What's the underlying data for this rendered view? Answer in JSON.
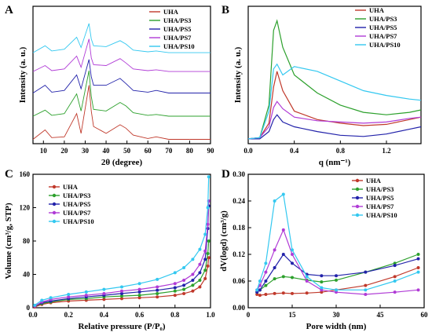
{
  "colors": {
    "UHA": "#c0392b",
    "UHA/PS3": "#2ca02c",
    "UHA/PS5": "#2222aa",
    "UHA/PS7": "#b03bd6",
    "UHA/PS10": "#33c8f0"
  },
  "chart_data": [
    {
      "panel": "A",
      "type": "line",
      "title": "",
      "xlabel": "2θ (degree)",
      "ylabel": "Intensity (a. u.)",
      "xlim": [
        5,
        90
      ],
      "xticks": [
        "10",
        "20",
        "30",
        "40",
        "50",
        "60",
        "70",
        "80",
        "90"
      ],
      "legend_position": "top-right",
      "series": [
        {
          "name": "UHA",
          "x": [
            5,
            10.8,
            14,
            20,
            25.9,
            28,
            31.8,
            32.9,
            34,
            40,
            46.7,
            49.5,
            53,
            60,
            64,
            70,
            80,
            90
          ],
          "y": [
            0.5,
            1.6,
            0.7,
            0.8,
            3.5,
            1.2,
            6.8,
            3.8,
            2.0,
            1.2,
            2.2,
            1.8,
            1.0,
            0.6,
            0.8,
            0.5,
            0.5,
            0.5
          ]
        },
        {
          "name": "UHA/PS3",
          "x": [
            5,
            10.8,
            14,
            20,
            25.9,
            28,
            31.8,
            32.9,
            34,
            40,
            46.7,
            49.5,
            53,
            60,
            64,
            70,
            80,
            90
          ],
          "y": [
            3.2,
            3.9,
            3.3,
            3.5,
            5.8,
            3.8,
            8.5,
            5.5,
            4.0,
            3.8,
            4.8,
            4.4,
            3.6,
            3.3,
            3.4,
            3.2,
            3.2,
            3.2
          ]
        },
        {
          "name": "UHA/PS5",
          "x": [
            5,
            10.8,
            14,
            20,
            25.9,
            28,
            31.8,
            32.9,
            34,
            40,
            46.7,
            49.5,
            53,
            60,
            64,
            70,
            80,
            90
          ],
          "y": [
            5.9,
            6.8,
            6.0,
            6.2,
            8.0,
            6.4,
            9.8,
            7.8,
            6.8,
            6.8,
            7.6,
            7.0,
            6.2,
            6.0,
            6.2,
            5.9,
            5.9,
            5.9
          ]
        },
        {
          "name": "UHA/PS7",
          "x": [
            5,
            10.8,
            14,
            20,
            25.9,
            28,
            31.8,
            32.9,
            34,
            40,
            46.7,
            49.5,
            53,
            60,
            64,
            70,
            80,
            90
          ],
          "y": [
            8.4,
            9.1,
            8.5,
            8.7,
            10.2,
            8.9,
            12.2,
            10.0,
            9.2,
            9.1,
            9.9,
            9.4,
            8.7,
            8.5,
            8.6,
            8.4,
            8.4,
            8.4
          ]
        },
        {
          "name": "UHA/PS10",
          "x": [
            5,
            10.8,
            14,
            20,
            25.9,
            28,
            31.8,
            32.9,
            34,
            40,
            46.7,
            49.5,
            53,
            60,
            64,
            70,
            80,
            90
          ],
          "y": [
            10.6,
            11.4,
            10.8,
            11.0,
            12.4,
            11.2,
            14.0,
            12.2,
            11.4,
            11.3,
            12.0,
            11.6,
            10.9,
            10.7,
            10.8,
            10.6,
            10.6,
            10.6
          ]
        }
      ]
    },
    {
      "panel": "B",
      "type": "line",
      "title": "",
      "xlabel": "q (nm⁻¹)",
      "ylabel": "Intensity (a. u.)",
      "xlim": [
        0,
        1.5
      ],
      "xticks": [
        "0.0",
        "0.4",
        "0.8",
        "1.2"
      ],
      "legend_position": "top-right",
      "series": [
        {
          "name": "UHA",
          "x": [
            0.0,
            0.1,
            0.18,
            0.22,
            0.25,
            0.3,
            0.4,
            0.6,
            0.8,
            1.0,
            1.2,
            1.4,
            1.5
          ],
          "y": [
            0.02,
            0.03,
            0.15,
            0.45,
            0.58,
            0.42,
            0.25,
            0.18,
            0.15,
            0.13,
            0.14,
            0.18,
            0.2
          ]
        },
        {
          "name": "UHA/PS3",
          "x": [
            0.0,
            0.1,
            0.18,
            0.22,
            0.25,
            0.3,
            0.4,
            0.6,
            0.8,
            1.0,
            1.2,
            1.4,
            1.5
          ],
          "y": [
            0.02,
            0.03,
            0.3,
            0.92,
            1.0,
            0.78,
            0.55,
            0.4,
            0.3,
            0.24,
            0.22,
            0.24,
            0.26
          ]
        },
        {
          "name": "UHA/PS5",
          "x": [
            0.0,
            0.1,
            0.18,
            0.22,
            0.25,
            0.3,
            0.4,
            0.6,
            0.8,
            1.0,
            1.2,
            1.4,
            1.5
          ],
          "y": [
            0.02,
            0.02,
            0.08,
            0.18,
            0.22,
            0.16,
            0.12,
            0.08,
            0.05,
            0.04,
            0.06,
            0.1,
            0.12
          ]
        },
        {
          "name": "UHA/PS7",
          "x": [
            0.0,
            0.1,
            0.18,
            0.22,
            0.25,
            0.3,
            0.4,
            0.6,
            0.8,
            1.0,
            1.2,
            1.4,
            1.5
          ],
          "y": [
            0.02,
            0.03,
            0.12,
            0.28,
            0.33,
            0.27,
            0.2,
            0.17,
            0.16,
            0.15,
            0.16,
            0.19,
            0.2
          ]
        },
        {
          "name": "UHA/PS10",
          "x": [
            0.0,
            0.1,
            0.18,
            0.22,
            0.25,
            0.3,
            0.4,
            0.6,
            0.8,
            1.0,
            1.2,
            1.4,
            1.5
          ],
          "y": [
            0.02,
            0.03,
            0.25,
            0.6,
            0.64,
            0.55,
            0.62,
            0.58,
            0.5,
            0.42,
            0.38,
            0.35,
            0.34
          ]
        }
      ]
    },
    {
      "panel": "C",
      "type": "line",
      "title": "",
      "xlabel": "Relative pressure (P/P₀)",
      "ylabel": "Volume (cm³/g, STP)",
      "xlim": [
        0,
        1.0
      ],
      "ylim": [
        0,
        160
      ],
      "xticks": [
        "0.0",
        "0.2",
        "0.4",
        "0.6",
        "0.8",
        "1.0"
      ],
      "yticks": [
        "0",
        "40",
        "80",
        "120",
        "160"
      ],
      "legend_position": "top-left",
      "series": [
        {
          "name": "UHA",
          "x": [
            0.01,
            0.05,
            0.1,
            0.2,
            0.3,
            0.4,
            0.5,
            0.6,
            0.7,
            0.8,
            0.85,
            0.9,
            0.94,
            0.97,
            0.985,
            0.99
          ],
          "y": [
            1,
            4,
            6,
            8,
            9,
            10,
            11,
            12,
            13,
            15,
            17,
            20,
            25,
            35,
            50,
            60
          ]
        },
        {
          "name": "UHA/PS3",
          "x": [
            0.01,
            0.05,
            0.1,
            0.2,
            0.3,
            0.4,
            0.5,
            0.6,
            0.7,
            0.8,
            0.85,
            0.9,
            0.94,
            0.97,
            0.985,
            0.99
          ],
          "y": [
            2,
            5,
            7,
            10,
            11,
            13,
            14,
            15,
            17,
            20,
            22,
            27,
            33,
            45,
            65,
            80
          ]
        },
        {
          "name": "UHA/PS5",
          "x": [
            0.01,
            0.05,
            0.1,
            0.2,
            0.3,
            0.4,
            0.5,
            0.6,
            0.7,
            0.8,
            0.85,
            0.9,
            0.94,
            0.97,
            0.985,
            0.99
          ],
          "y": [
            2,
            6,
            8,
            11,
            13,
            15,
            17,
            19,
            21,
            24,
            27,
            33,
            42,
            58,
            95,
            122
          ]
        },
        {
          "name": "UHA/PS7",
          "x": [
            0.01,
            0.05,
            0.1,
            0.2,
            0.3,
            0.4,
            0.5,
            0.6,
            0.7,
            0.8,
            0.85,
            0.9,
            0.94,
            0.97,
            0.985,
            0.99
          ],
          "y": [
            2,
            7,
            10,
            13,
            15,
            17,
            20,
            22,
            25,
            29,
            33,
            40,
            52,
            68,
            100,
            128
          ]
        },
        {
          "name": "UHA/PS10",
          "x": [
            0.01,
            0.05,
            0.1,
            0.2,
            0.3,
            0.4,
            0.5,
            0.6,
            0.7,
            0.8,
            0.85,
            0.9,
            0.94,
            0.97,
            0.985,
            0.99
          ],
          "y": [
            3,
            9,
            12,
            16,
            19,
            22,
            25,
            29,
            34,
            42,
            48,
            58,
            70,
            88,
            120,
            157
          ]
        }
      ]
    },
    {
      "panel": "D",
      "type": "line",
      "title": "",
      "xlabel": "Pore width (nm)",
      "ylabel": "dV(logd) (cm³/g)",
      "xlim": [
        0,
        60
      ],
      "ylim": [
        0,
        0.3
      ],
      "xticks": [
        "0",
        "15",
        "30",
        "45",
        "60"
      ],
      "yticks": [
        "0.00",
        "0.06",
        "0.12",
        "0.18",
        "0.24",
        "0.30"
      ],
      "legend_position": "top-right",
      "series": [
        {
          "name": "UHA",
          "x": [
            3,
            4,
            6,
            9,
            12,
            15,
            20,
            25,
            30,
            40,
            50,
            58
          ],
          "y": [
            0.03,
            0.028,
            0.03,
            0.032,
            0.033,
            0.032,
            0.033,
            0.035,
            0.04,
            0.05,
            0.07,
            0.09
          ]
        },
        {
          "name": "UHA/PS3",
          "x": [
            3,
            4,
            6,
            9,
            12,
            15,
            20,
            25,
            30,
            40,
            50,
            58
          ],
          "y": [
            0.035,
            0.04,
            0.05,
            0.065,
            0.07,
            0.068,
            0.062,
            0.058,
            0.062,
            0.08,
            0.1,
            0.12
          ]
        },
        {
          "name": "UHA/PS5",
          "x": [
            3,
            4,
            6,
            9,
            12,
            15,
            20,
            25,
            30,
            40,
            50,
            58
          ],
          "y": [
            0.035,
            0.04,
            0.06,
            0.09,
            0.12,
            0.1,
            0.075,
            0.072,
            0.072,
            0.08,
            0.095,
            0.11
          ]
        },
        {
          "name": "UHA/PS7",
          "x": [
            3,
            4,
            6,
            9,
            12,
            15,
            20,
            25,
            30,
            40,
            50,
            58
          ],
          "y": [
            0.04,
            0.05,
            0.08,
            0.13,
            0.175,
            0.12,
            0.06,
            0.04,
            0.035,
            0.03,
            0.035,
            0.04
          ]
        },
        {
          "name": "UHA/PS10",
          "x": [
            3,
            4,
            6,
            9,
            12,
            15,
            20,
            25,
            30,
            40,
            50,
            58
          ],
          "y": [
            0.04,
            0.06,
            0.1,
            0.24,
            0.255,
            0.13,
            0.07,
            0.045,
            0.04,
            0.04,
            0.06,
            0.08
          ]
        }
      ]
    }
  ]
}
